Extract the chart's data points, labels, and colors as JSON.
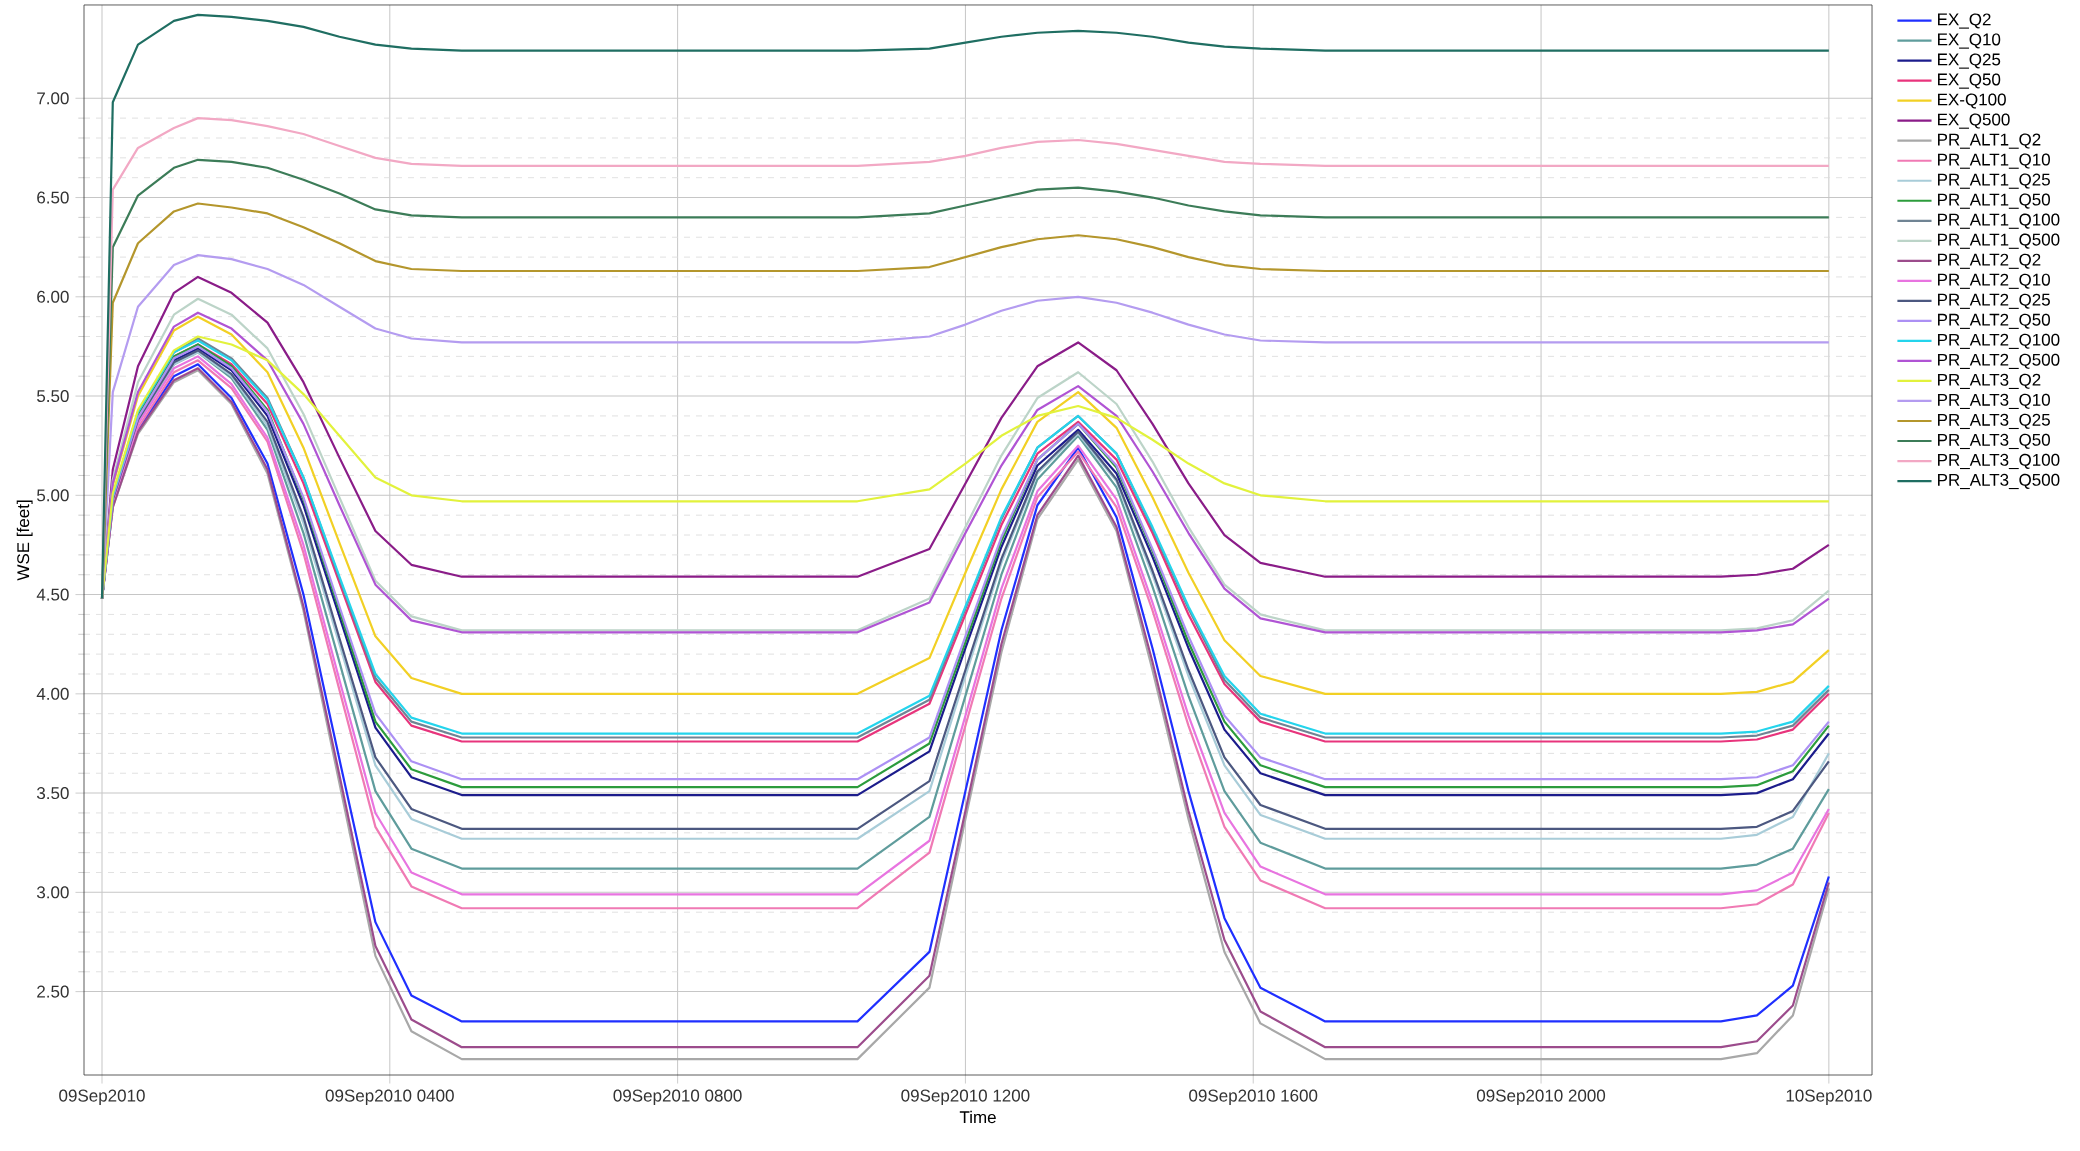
{
  "chart_data": {
    "type": "line",
    "xlabel": "Time",
    "ylabel": "WSE [feet]",
    "x": [
      "2010-09-09T00:00",
      "2010-09-09T00:09",
      "2010-09-09T00:30",
      "2010-09-09T01:00",
      "2010-09-09T01:20",
      "2010-09-09T01:48",
      "2010-09-09T02:18",
      "2010-09-09T02:48",
      "2010-09-09T03:18",
      "2010-09-09T03:48",
      "2010-09-09T04:18",
      "2010-09-09T05:00",
      "2010-09-09T10:30",
      "2010-09-09T11:30",
      "2010-09-09T12:00",
      "2010-09-09T12:30",
      "2010-09-09T13:00",
      "2010-09-09T13:34",
      "2010-09-09T14:06",
      "2010-09-09T14:36",
      "2010-09-09T15:06",
      "2010-09-09T15:36",
      "2010-09-09T16:06",
      "2010-09-09T17:00",
      "2010-09-09T22:30",
      "2010-09-09T23:00",
      "2010-09-09T23:30",
      "2010-09-10T00:00"
    ],
    "xlim": [
      "2010-09-08T23:45",
      "2010-09-10T00:36"
    ],
    "xticks": [
      {
        "value": "2010-09-09T00:00",
        "label": "09Sep2010"
      },
      {
        "value": "2010-09-09T04:00",
        "label": "09Sep2010 0400"
      },
      {
        "value": "2010-09-09T08:00",
        "label": "09Sep2010 0800"
      },
      {
        "value": "2010-09-09T12:00",
        "label": "09Sep2010 1200"
      },
      {
        "value": "2010-09-09T16:00",
        "label": "09Sep2010 1600"
      },
      {
        "value": "2010-09-09T20:00",
        "label": "09Sep2010 2000"
      },
      {
        "value": "2010-09-10T00:00",
        "label": "10Sep2010"
      }
    ],
    "ylim": [
      2.08,
      7.47
    ],
    "yticks": [
      {
        "value": 2.5,
        "label": "2.50"
      },
      {
        "value": 3.0,
        "label": "3.00"
      },
      {
        "value": 3.5,
        "label": "3.50"
      },
      {
        "value": 4.0,
        "label": "4.00"
      },
      {
        "value": 4.5,
        "label": "4.50"
      },
      {
        "value": 5.0,
        "label": "5.00"
      },
      {
        "value": 5.5,
        "label": "5.50"
      },
      {
        "value": 6.0,
        "label": "6.00"
      },
      {
        "value": 6.5,
        "label": "6.50"
      },
      {
        "value": 7.0,
        "label": "7.00"
      }
    ],
    "grid": true,
    "legend": "right",
    "series": [
      {
        "name": "EX_Q2",
        "color": "#1f2fff",
        "values": [
          4.48,
          4.95,
          5.33,
          5.6,
          5.66,
          5.49,
          5.16,
          4.5,
          3.67,
          2.85,
          2.48,
          2.35,
          2.35,
          2.7,
          3.51,
          4.32,
          4.95,
          5.24,
          4.89,
          4.23,
          3.51,
          2.87,
          2.52,
          2.35,
          2.35,
          2.38,
          2.53,
          3.08
        ]
      },
      {
        "name": "EX_Q10",
        "color": "#5f9c9c",
        "values": [
          4.48,
          4.98,
          5.37,
          5.66,
          5.72,
          5.59,
          5.33,
          4.81,
          4.16,
          3.51,
          3.22,
          3.12,
          3.12,
          3.38,
          3.99,
          4.6,
          5.08,
          5.3,
          5.04,
          4.54,
          3.99,
          3.51,
          3.25,
          3.12,
          3.12,
          3.14,
          3.22,
          3.52
        ]
      },
      {
        "name": "EX_Q25",
        "color": "#1c1c8c",
        "values": [
          4.48,
          4.98,
          5.39,
          5.68,
          5.74,
          5.63,
          5.4,
          4.95,
          4.39,
          3.83,
          3.58,
          3.49,
          3.49,
          3.71,
          4.23,
          4.74,
          5.15,
          5.33,
          5.11,
          4.69,
          4.23,
          3.82,
          3.6,
          3.49,
          3.49,
          3.5,
          3.57,
          3.8
        ]
      },
      {
        "name": "EX_Q50",
        "color": "#e8347c",
        "values": [
          4.48,
          4.99,
          5.4,
          5.7,
          5.76,
          5.66,
          5.46,
          5.06,
          4.56,
          4.06,
          3.84,
          3.76,
          3.76,
          3.95,
          4.4,
          4.85,
          5.21,
          5.37,
          5.18,
          4.81,
          4.4,
          4.05,
          3.86,
          3.76,
          3.76,
          3.77,
          3.82,
          4.0
        ]
      },
      {
        "name": "EX-Q100",
        "color": "#f2d024",
        "values": [
          4.48,
          5.05,
          5.5,
          5.83,
          5.9,
          5.81,
          5.62,
          5.24,
          4.76,
          4.29,
          4.08,
          4.0,
          4.0,
          4.18,
          4.61,
          5.03,
          5.37,
          5.52,
          5.34,
          4.99,
          4.61,
          4.27,
          4.09,
          4.0,
          4.0,
          4.01,
          4.06,
          4.22
        ]
      },
      {
        "name": "EX_Q500",
        "color": "#8a1c88",
        "values": [
          4.48,
          5.13,
          5.65,
          6.02,
          6.1,
          6.02,
          5.87,
          5.57,
          5.19,
          4.82,
          4.65,
          4.59,
          4.59,
          4.73,
          5.06,
          5.39,
          5.65,
          5.77,
          5.63,
          5.36,
          5.06,
          4.8,
          4.66,
          4.59,
          4.59,
          4.6,
          4.63,
          4.75
        ]
      },
      {
        "name": "PR_ALT1_Q2",
        "color": "#a8a8a8",
        "values": [
          4.48,
          4.94,
          5.31,
          5.57,
          5.63,
          5.46,
          5.11,
          4.42,
          3.55,
          2.68,
          2.3,
          2.16,
          2.16,
          2.52,
          3.37,
          4.21,
          4.88,
          5.18,
          4.82,
          4.12,
          3.37,
          2.7,
          2.34,
          2.16,
          2.16,
          2.19,
          2.38,
          3.02
        ]
      },
      {
        "name": "PR_ALT1_Q10",
        "color": "#f07ab4",
        "values": [
          4.48,
          4.96,
          5.34,
          5.62,
          5.68,
          5.54,
          5.27,
          4.71,
          4.02,
          3.33,
          3.03,
          2.92,
          2.92,
          3.2,
          3.84,
          4.48,
          4.99,
          5.22,
          4.94,
          4.42,
          3.84,
          3.33,
          3.06,
          2.92,
          2.92,
          2.94,
          3.04,
          3.4
        ]
      },
      {
        "name": "PR_ALT1_Q25",
        "color": "#a8ccd8",
        "values": [
          4.48,
          4.98,
          5.37,
          5.66,
          5.72,
          5.6,
          5.35,
          4.86,
          4.25,
          3.64,
          3.37,
          3.27,
          3.27,
          3.51,
          4.09,
          4.66,
          5.11,
          5.31,
          5.07,
          4.6,
          4.09,
          3.64,
          3.39,
          3.27,
          3.27,
          3.29,
          3.38,
          3.7
        ]
      },
      {
        "name": "PR_ALT1_Q50",
        "color": "#2c9c3c",
        "values": [
          4.48,
          4.99,
          5.4,
          5.7,
          5.76,
          5.65,
          5.43,
          4.98,
          4.42,
          3.86,
          3.62,
          3.53,
          3.53,
          3.75,
          4.26,
          4.77,
          5.18,
          5.36,
          5.14,
          4.72,
          4.26,
          3.86,
          3.64,
          3.53,
          3.53,
          3.54,
          3.61,
          3.84
        ]
      },
      {
        "name": "PR_ALT1_Q100",
        "color": "#708494",
        "values": [
          4.48,
          5.0,
          5.42,
          5.72,
          5.79,
          5.69,
          5.49,
          5.09,
          4.58,
          4.08,
          3.86,
          3.78,
          3.78,
          3.97,
          4.43,
          4.88,
          5.24,
          5.4,
          5.21,
          4.83,
          4.43,
          4.07,
          3.88,
          3.78,
          3.78,
          3.79,
          3.84,
          4.02
        ]
      },
      {
        "name": "PR_ALT1_Q500",
        "color": "#bcd4c8",
        "values": [
          4.48,
          5.08,
          5.57,
          5.91,
          5.99,
          5.91,
          5.74,
          5.41,
          4.99,
          4.57,
          4.39,
          4.32,
          4.32,
          4.48,
          4.84,
          5.2,
          5.49,
          5.62,
          5.46,
          5.17,
          4.84,
          4.55,
          4.4,
          4.32,
          4.32,
          4.33,
          4.37,
          4.52
        ]
      },
      {
        "name": "PR_ALT2_Q2",
        "color": "#9c4c8c",
        "values": [
          4.48,
          4.94,
          5.32,
          5.58,
          5.64,
          5.47,
          5.13,
          4.44,
          3.59,
          2.73,
          2.36,
          2.22,
          2.22,
          2.58,
          3.41,
          4.25,
          4.9,
          5.2,
          4.84,
          4.16,
          3.41,
          2.76,
          2.4,
          2.22,
          2.22,
          2.25,
          2.43,
          3.05
        ]
      },
      {
        "name": "PR_ALT2_Q10",
        "color": "#e874e0",
        "values": [
          4.48,
          4.97,
          5.36,
          5.64,
          5.7,
          5.56,
          5.29,
          4.75,
          4.07,
          3.4,
          3.1,
          2.99,
          2.99,
          3.26,
          3.89,
          4.53,
          5.02,
          5.25,
          4.98,
          4.46,
          3.89,
          3.4,
          3.13,
          2.99,
          2.99,
          3.01,
          3.1,
          3.42
        ]
      },
      {
        "name": "PR_ALT2_Q25",
        "color": "#4c5880",
        "values": [
          4.48,
          4.98,
          5.38,
          5.67,
          5.73,
          5.61,
          5.37,
          4.89,
          4.28,
          3.68,
          3.42,
          3.32,
          3.32,
          3.56,
          4.12,
          4.68,
          5.12,
          5.32,
          5.08,
          4.62,
          4.12,
          3.68,
          3.44,
          3.32,
          3.32,
          3.33,
          3.41,
          3.66
        ]
      },
      {
        "name": "PR_ALT2_Q50",
        "color": "#ac90f4",
        "values": [
          4.48,
          4.99,
          5.39,
          5.69,
          5.75,
          5.64,
          5.42,
          4.99,
          4.44,
          3.9,
          3.66,
          3.57,
          3.57,
          3.78,
          4.29,
          4.79,
          5.18,
          5.36,
          5.15,
          4.73,
          4.29,
          3.89,
          3.68,
          3.57,
          3.57,
          3.58,
          3.64,
          3.86
        ]
      },
      {
        "name": "PR_ALT2_Q100",
        "color": "#24d4ec",
        "values": [
          4.48,
          5.0,
          5.42,
          5.72,
          5.78,
          5.68,
          5.48,
          5.09,
          4.59,
          4.1,
          3.88,
          3.8,
          3.8,
          3.99,
          4.44,
          4.89,
          5.24,
          5.4,
          5.21,
          4.84,
          4.44,
          4.09,
          3.9,
          3.8,
          3.8,
          3.81,
          3.86,
          4.04
        ]
      },
      {
        "name": "PR_ALT2_Q500",
        "color": "#b054d4",
        "values": [
          4.48,
          5.06,
          5.52,
          5.85,
          5.92,
          5.84,
          5.68,
          5.36,
          4.95,
          4.55,
          4.37,
          4.31,
          4.31,
          4.46,
          4.81,
          5.15,
          5.43,
          5.55,
          5.4,
          5.12,
          4.81,
          4.53,
          4.38,
          4.31,
          4.31,
          4.32,
          4.35,
          4.48
        ]
      },
      {
        "name": "PR_ALT3_Q2",
        "color": "#e2f23c",
        "values": [
          4.48,
          5.01,
          5.43,
          5.73,
          5.8,
          5.76,
          5.68,
          5.51,
          5.3,
          5.09,
          5.0,
          4.97,
          4.97,
          5.03,
          5.16,
          5.3,
          5.4,
          5.45,
          5.39,
          5.28,
          5.16,
          5.06,
          5.0,
          4.97,
          4.97,
          4.97,
          4.97,
          4.97
        ]
      },
      {
        "name": "PR_ALT3_Q10",
        "color": "#b49cf0",
        "values": [
          4.48,
          5.52,
          5.95,
          6.16,
          6.21,
          6.19,
          6.14,
          6.06,
          5.95,
          5.84,
          5.79,
          5.77,
          5.77,
          5.8,
          5.86,
          5.93,
          5.98,
          6.0,
          5.97,
          5.92,
          5.86,
          5.81,
          5.78,
          5.77,
          5.77,
          5.77,
          5.77,
          5.77
        ]
      },
      {
        "name": "PR_ALT3_Q25",
        "color": "#b4962c",
        "values": [
          4.48,
          5.97,
          6.27,
          6.43,
          6.47,
          6.45,
          6.42,
          6.35,
          6.27,
          6.18,
          6.14,
          6.13,
          6.13,
          6.15,
          6.2,
          6.25,
          6.29,
          6.31,
          6.29,
          6.25,
          6.2,
          6.16,
          6.14,
          6.13,
          6.13,
          6.13,
          6.13,
          6.13
        ]
      },
      {
        "name": "PR_ALT3_Q50",
        "color": "#3c7c58",
        "values": [
          4.48,
          6.25,
          6.51,
          6.65,
          6.69,
          6.68,
          6.65,
          6.59,
          6.52,
          6.44,
          6.41,
          6.4,
          6.4,
          6.42,
          6.46,
          6.5,
          6.54,
          6.55,
          6.53,
          6.5,
          6.46,
          6.43,
          6.41,
          6.4,
          6.4,
          6.4,
          6.4,
          6.4
        ]
      },
      {
        "name": "PR_ALT3_Q100",
        "color": "#f2a8c4",
        "values": [
          4.48,
          6.54,
          6.75,
          6.85,
          6.9,
          6.89,
          6.86,
          6.82,
          6.76,
          6.7,
          6.67,
          6.66,
          6.66,
          6.68,
          6.71,
          6.75,
          6.78,
          6.79,
          6.77,
          6.74,
          6.71,
          6.68,
          6.67,
          6.66,
          6.66,
          6.66,
          6.66,
          6.66
        ]
      },
      {
        "name": "PR_ALT3_Q500",
        "color": "#1f6e62",
        "values": [
          4.48,
          6.98,
          7.27,
          7.39,
          7.42,
          7.41,
          7.39,
          7.36,
          7.31,
          7.27,
          7.25,
          7.24,
          7.24,
          7.25,
          7.28,
          7.31,
          7.33,
          7.34,
          7.33,
          7.31,
          7.28,
          7.26,
          7.25,
          7.24,
          7.24,
          7.24,
          7.24,
          7.24
        ]
      }
    ]
  }
}
